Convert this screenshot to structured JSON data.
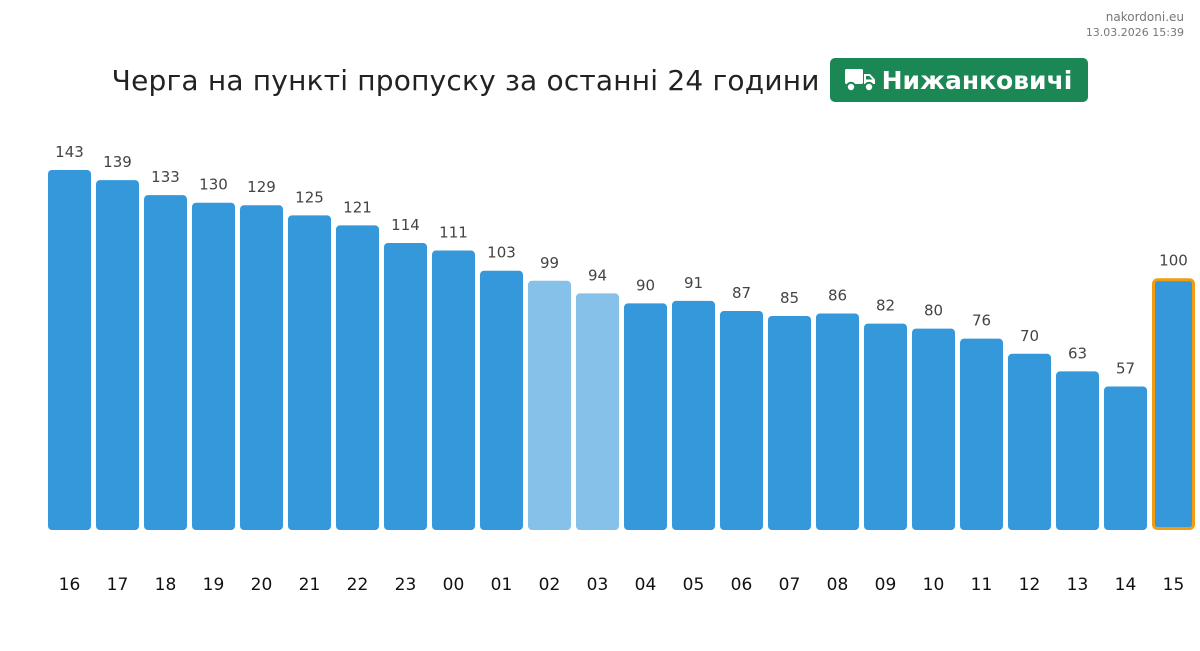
{
  "source": {
    "site": "nakordoni.eu",
    "timestamp": "13.03.2026 15:39"
  },
  "header": {
    "title": "Черга на пункті пропуску за останні 24 години",
    "badge_label": "Нижанковичі",
    "badge_icon": "truck-icon",
    "badge_color": "#1a8754"
  },
  "colors": {
    "bar": "#3598db",
    "bar_light": "#85c1e9",
    "current_outline": "#f39c12"
  },
  "chart_data": {
    "type": "bar",
    "title": "Черга на пункті пропуску за останні 24 години",
    "categories": [
      "16",
      "17",
      "18",
      "19",
      "20",
      "21",
      "22",
      "23",
      "00",
      "01",
      "02",
      "03",
      "04",
      "05",
      "06",
      "07",
      "08",
      "09",
      "10",
      "11",
      "12",
      "13",
      "14",
      "15"
    ],
    "values": [
      143,
      139,
      133,
      130,
      129,
      125,
      121,
      114,
      111,
      103,
      99,
      94,
      90,
      91,
      87,
      85,
      86,
      82,
      80,
      76,
      70,
      63,
      57,
      100
    ],
    "light_categories": [
      "02",
      "03"
    ],
    "highlighted_category": "15",
    "ylim": [
      0,
      143
    ],
    "grid": false,
    "legend": "none"
  }
}
